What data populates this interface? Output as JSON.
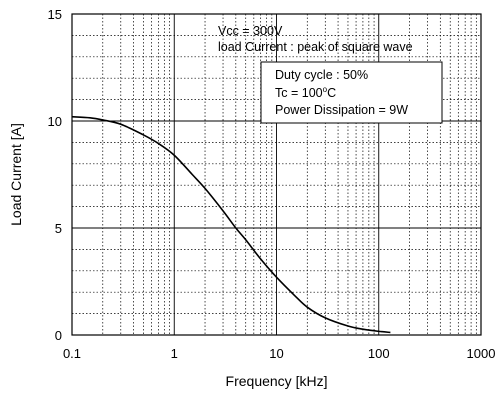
{
  "chart_data": {
    "type": "line",
    "xlabel": "Frequency [kHz]",
    "ylabel": "Load Current [A]",
    "x_scale": "log",
    "xlim": [
      0.1,
      1000
    ],
    "ylim": [
      0,
      15
    ],
    "x_ticks": [
      "0.1",
      "1",
      "10",
      "100",
      "1000"
    ],
    "y_ticks": [
      "0",
      "5",
      "10",
      "15"
    ],
    "grid": true,
    "annotations": {
      "top_line1": "Vcc = 300V",
      "top_line2": "load Current : peak of square wave",
      "box_line1": "Duty cycle : 50%",
      "box_line2_prefix": "Tc = 100",
      "box_line2_sup": "o",
      "box_line2_suffix": "C",
      "box_line3": "Power Dissipation = 9W"
    },
    "series": [
      {
        "x": [
          0.1,
          0.15,
          0.2,
          0.3,
          0.5,
          0.7,
          1,
          1.5,
          2,
          3,
          4,
          5,
          7,
          10,
          15,
          20,
          30,
          50,
          70,
          100,
          130
        ],
        "y": [
          10.2,
          10.15,
          10.05,
          9.85,
          9.35,
          8.95,
          8.4,
          7.5,
          6.85,
          5.8,
          5.0,
          4.45,
          3.55,
          2.7,
          1.85,
          1.3,
          0.8,
          0.42,
          0.27,
          0.17,
          0.12
        ]
      }
    ]
  }
}
